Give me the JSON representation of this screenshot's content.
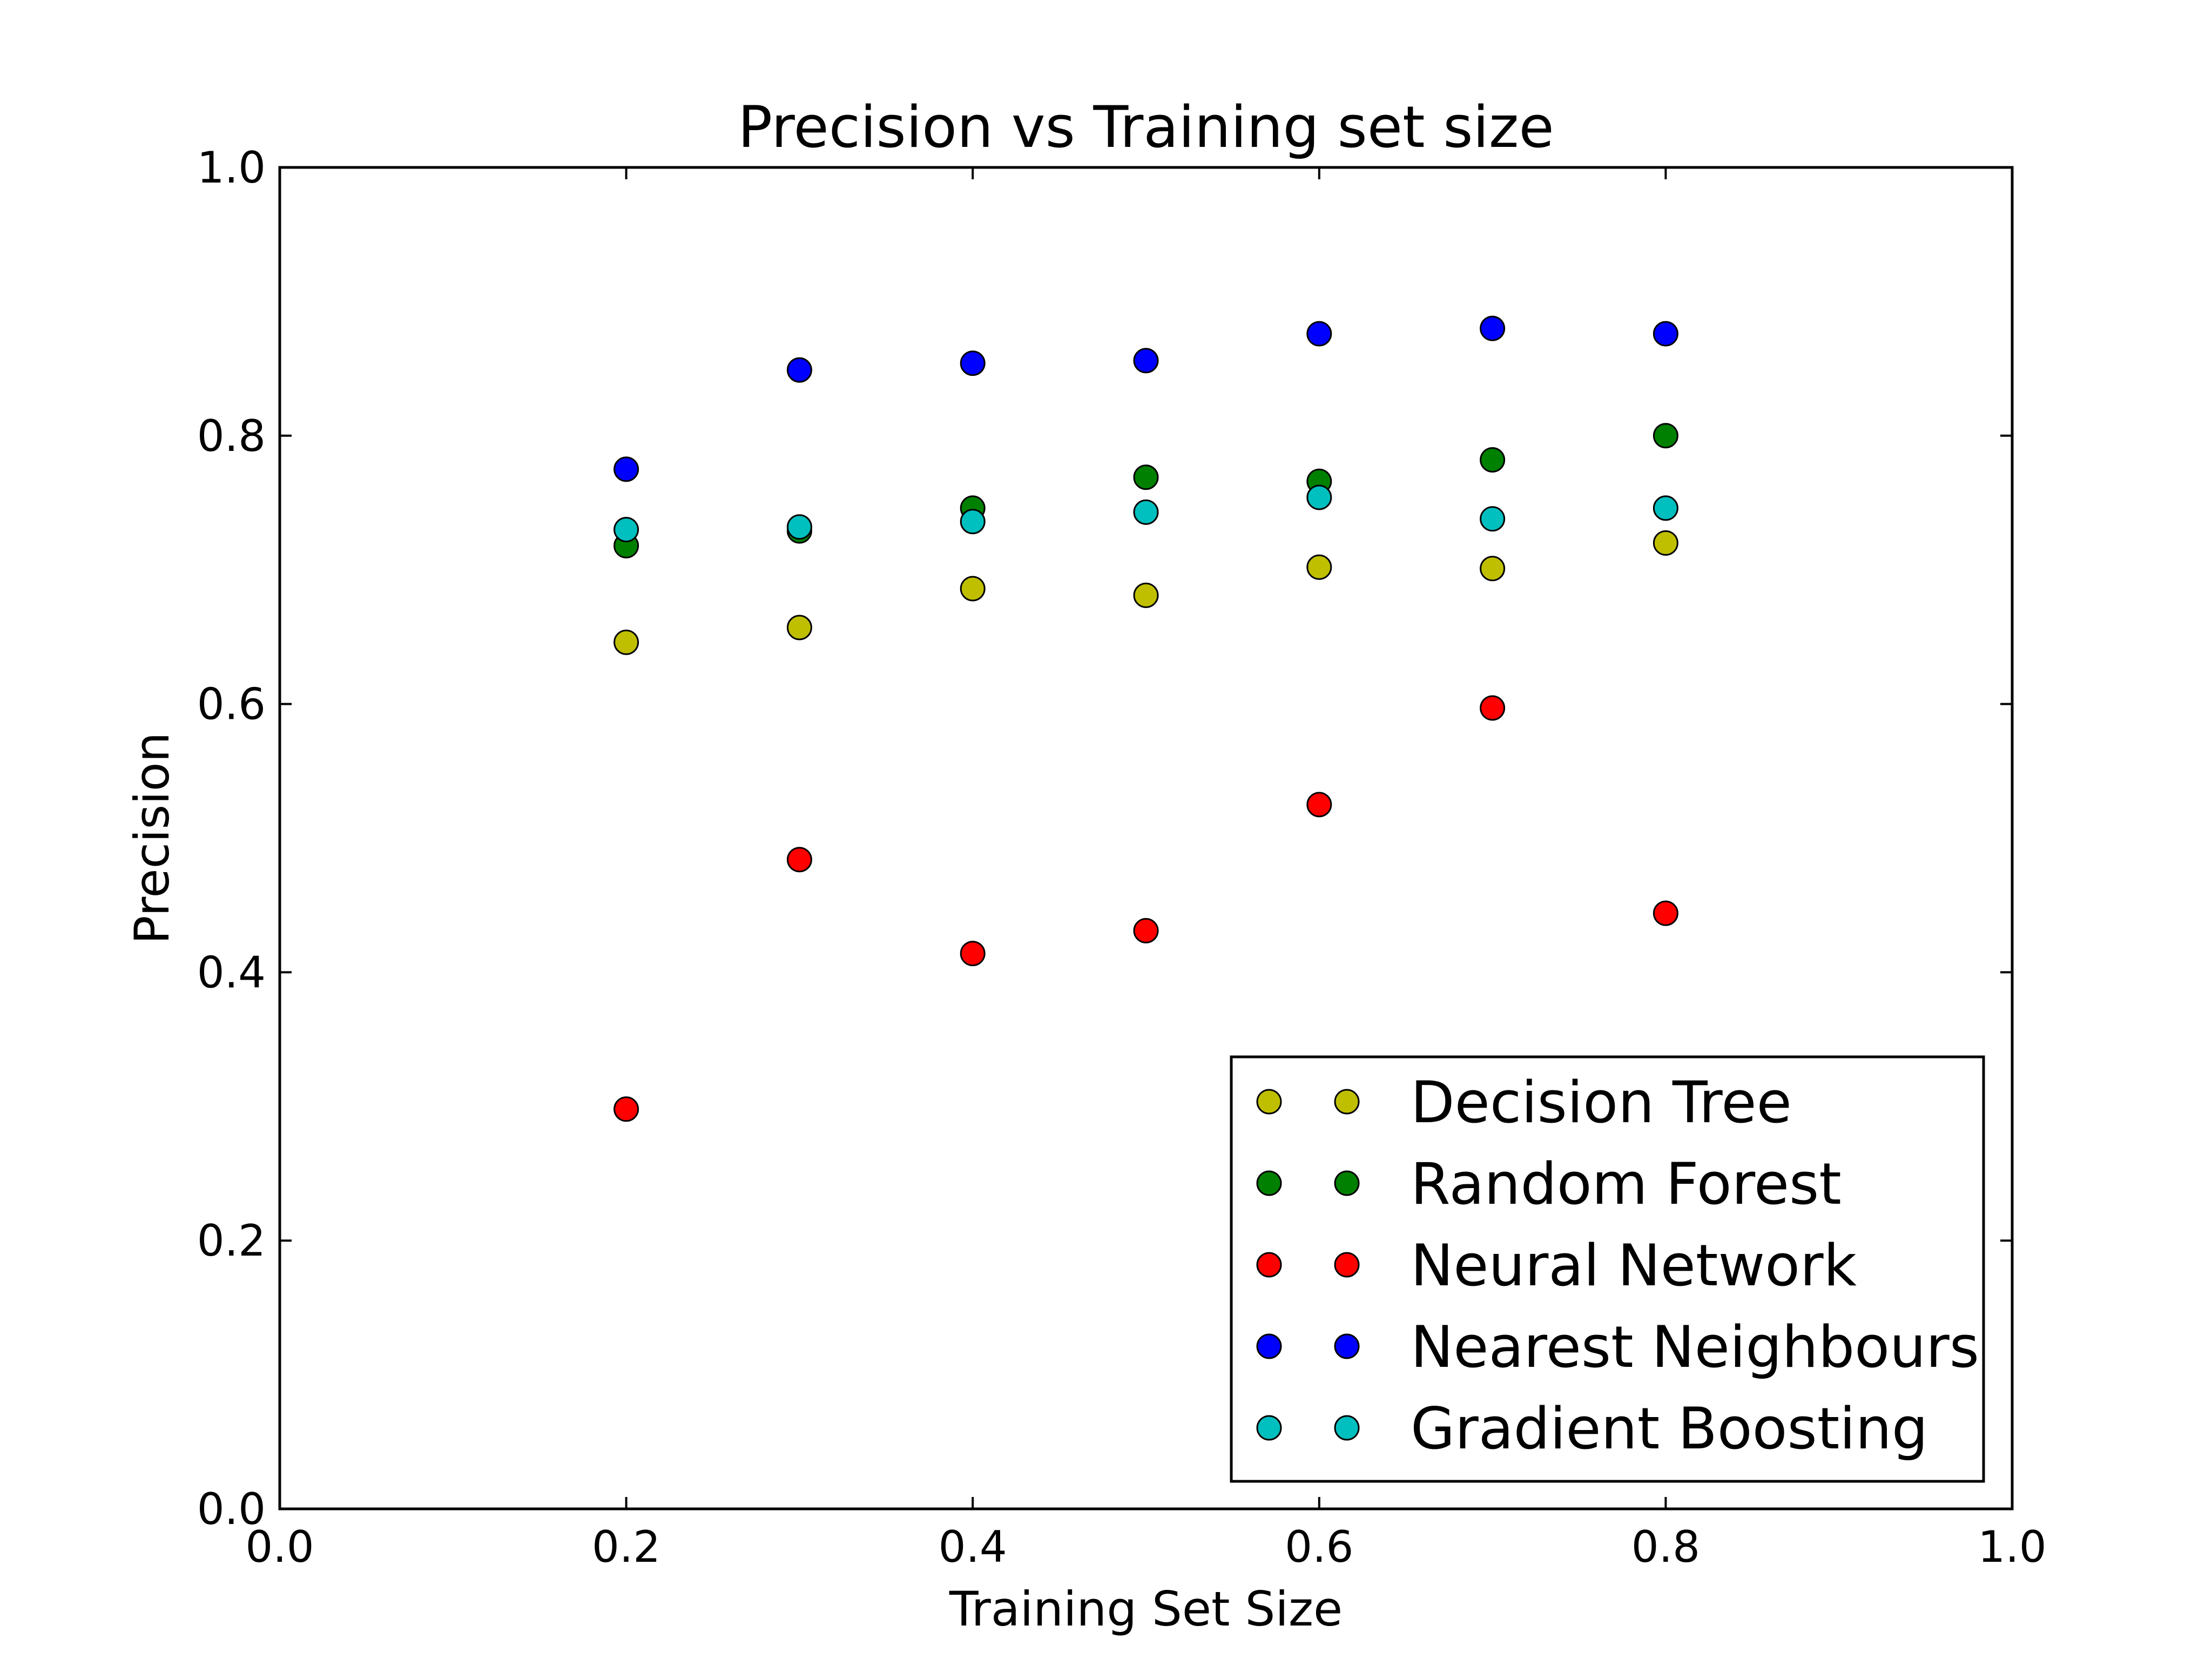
{
  "chart_data": {
    "type": "scatter",
    "title": "Precision vs Training set size",
    "xlabel": "Training Set Size",
    "ylabel": "Precision",
    "xlim": [
      0.0,
      1.0
    ],
    "ylim": [
      0.0,
      1.0
    ],
    "xticks": [
      "0.0",
      "0.2",
      "0.4",
      "0.6",
      "0.8",
      "1.0"
    ],
    "yticks": [
      "0.0",
      "0.2",
      "0.4",
      "0.6",
      "0.8",
      "1.0"
    ],
    "grid": false,
    "legend_position": "lower-right",
    "x": [
      0.2,
      0.3,
      0.4,
      0.5,
      0.6,
      0.7,
      0.8
    ],
    "series": [
      {
        "name": "Decision Tree",
        "color": "#bfbf00",
        "values": [
          0.646,
          0.657,
          0.686,
          0.681,
          0.702,
          0.701,
          0.72
        ]
      },
      {
        "name": "Random Forest",
        "color": "#008000",
        "values": [
          0.718,
          0.729,
          0.746,
          0.769,
          0.766,
          0.782,
          0.8
        ]
      },
      {
        "name": "Neural Network",
        "color": "#ff0000",
        "values": [
          0.298,
          0.484,
          0.414,
          0.431,
          0.525,
          0.597,
          0.444
        ]
      },
      {
        "name": "Nearest Neighbours",
        "color": "#0000ff",
        "values": [
          0.775,
          0.849,
          0.854,
          0.856,
          0.876,
          0.88,
          0.876
        ]
      },
      {
        "name": "Gradient Boosting",
        "color": "#00bfbf",
        "values": [
          0.73,
          0.732,
          0.736,
          0.743,
          0.754,
          0.738,
          0.746
        ]
      }
    ]
  }
}
